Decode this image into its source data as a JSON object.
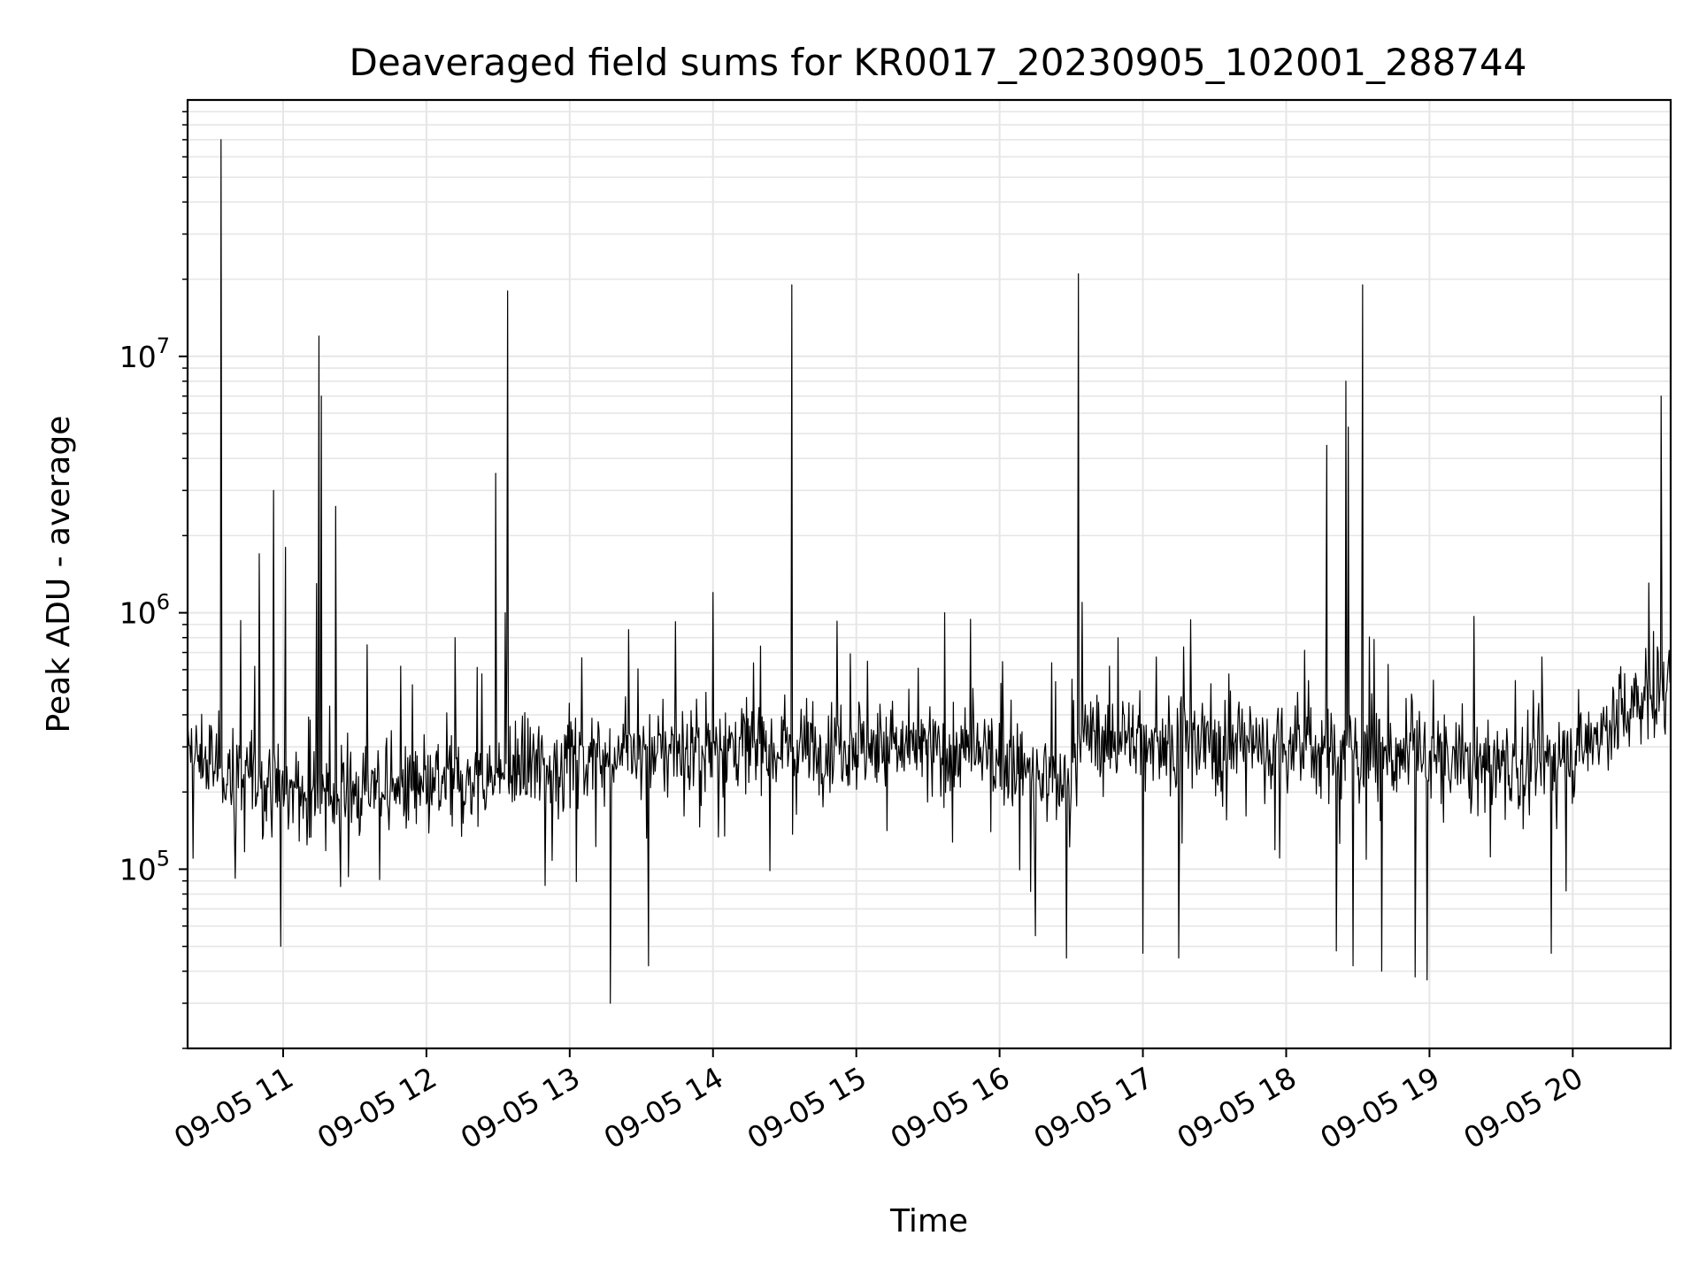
{
  "chart_data": {
    "type": "line",
    "title": "Deaveraged field sums for KR0017_20230905_102001_288744",
    "xlabel": "Time",
    "ylabel": "Peak ADU - average",
    "yscale": "log",
    "ylim": [
      20000,
      100000000
    ],
    "xlim": [
      "2023-09-05 10:20",
      "2023-09-05 20:41"
    ],
    "grid": true,
    "line_color": "#000000",
    "x_ticks": [
      {
        "value": "2023-09-05 11:00",
        "label": "09-05 11"
      },
      {
        "value": "2023-09-05 12:00",
        "label": "09-05 12"
      },
      {
        "value": "2023-09-05 13:00",
        "label": "09-05 13"
      },
      {
        "value": "2023-09-05 14:00",
        "label": "09-05 14"
      },
      {
        "value": "2023-09-05 15:00",
        "label": "09-05 15"
      },
      {
        "value": "2023-09-05 16:00",
        "label": "09-05 16"
      },
      {
        "value": "2023-09-05 17:00",
        "label": "09-05 17"
      },
      {
        "value": "2023-09-05 18:00",
        "label": "09-05 18"
      },
      {
        "value": "2023-09-05 19:00",
        "label": "09-05 19"
      },
      {
        "value": "2023-09-05 20:00",
        "label": "09-05 20"
      }
    ],
    "y_ticks": [
      {
        "value": 100000,
        "base": "10",
        "exp": "5"
      },
      {
        "value": 1000000,
        "base": "10",
        "exp": "6"
      },
      {
        "value": 10000000,
        "base": "10",
        "exp": "7"
      }
    ],
    "baseline": [
      [
        "2023-09-05 10:20",
        280000
      ],
      [
        "2023-09-05 10:40",
        240000
      ],
      [
        "2023-09-05 11:00",
        200000
      ],
      [
        "2023-09-05 11:20",
        190000
      ],
      [
        "2023-09-05 11:40",
        210000
      ],
      [
        "2023-09-05 12:00",
        200000
      ],
      [
        "2023-09-05 12:30",
        230000
      ],
      [
        "2023-09-05 13:00",
        270000
      ],
      [
        "2023-09-05 14:00",
        300000
      ],
      [
        "2023-09-05 15:00",
        310000
      ],
      [
        "2023-09-05 16:00",
        270000
      ],
      [
        "2023-09-05 16:30",
        200000
      ],
      [
        "2023-09-05 16:33",
        330000
      ],
      [
        "2023-09-05 17:00",
        320000
      ],
      [
        "2023-09-05 18:00",
        300000
      ],
      [
        "2023-09-05 19:00",
        270000
      ],
      [
        "2023-09-05 19:40",
        250000
      ],
      [
        "2023-09-05 20:00",
        280000
      ],
      [
        "2023-09-05 20:20",
        400000
      ],
      [
        "2023-09-05 20:41",
        560000
      ]
    ],
    "peaks": [
      [
        "2023-09-05 10:34",
        7000000
      ],
      [
        "2023-09-05 10:34",
        70000000
      ],
      [
        "2023-09-05 10:50",
        1700000
      ],
      [
        "2023-09-05 10:56",
        3000000
      ],
      [
        "2023-09-05 11:01",
        1800000
      ],
      [
        "2023-09-05 11:14",
        1300000
      ],
      [
        "2023-09-05 11:15",
        12000000
      ],
      [
        "2023-09-05 11:16",
        7000000
      ],
      [
        "2023-09-05 11:22",
        2600000
      ],
      [
        "2023-09-05 12:12",
        800000
      ],
      [
        "2023-09-05 12:29",
        3500000
      ],
      [
        "2023-09-05 12:33",
        1000000
      ],
      [
        "2023-09-05 12:34",
        18000000
      ],
      [
        "2023-09-05 14:00",
        1200000
      ],
      [
        "2023-09-05 14:33",
        19000000
      ],
      [
        "2023-09-05 15:37",
        1000000
      ],
      [
        "2023-09-05 16:33",
        21000000
      ],
      [
        "2023-09-05 18:17",
        4500000
      ],
      [
        "2023-09-05 18:25",
        8000000
      ],
      [
        "2023-09-05 18:26",
        5300000
      ],
      [
        "2023-09-05 18:32",
        19000000
      ],
      [
        "2023-09-05 20:37",
        7000000
      ]
    ],
    "dips": [
      [
        "2023-09-05 10:59",
        50000
      ],
      [
        "2023-09-05 13:17",
        30000
      ],
      [
        "2023-09-05 13:33",
        42000
      ],
      [
        "2023-09-05 16:15",
        55000
      ],
      [
        "2023-09-05 16:28",
        45000
      ],
      [
        "2023-09-05 17:00",
        47000
      ],
      [
        "2023-09-05 17:15",
        45000
      ],
      [
        "2023-09-05 18:21",
        48000
      ],
      [
        "2023-09-05 18:28",
        42000
      ],
      [
        "2023-09-05 18:40",
        40000
      ],
      [
        "2023-09-05 18:54",
        38000
      ],
      [
        "2023-09-05 18:59",
        37000
      ],
      [
        "2023-09-05 19:51",
        47000
      ]
    ]
  }
}
